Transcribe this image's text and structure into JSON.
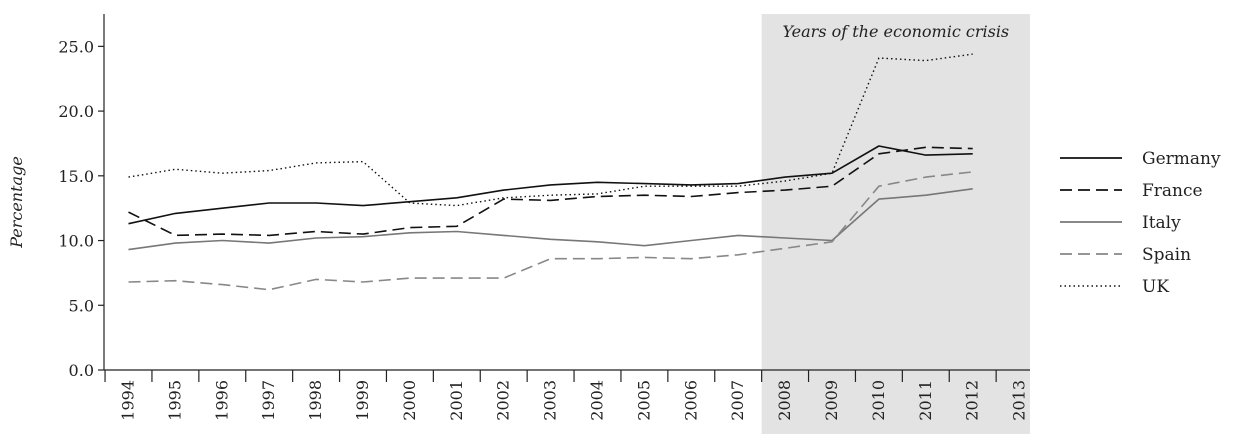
{
  "chart_data": {
    "type": "line",
    "ylabel": "Percentage",
    "xlabel": "",
    "title": "",
    "ylim": [
      0,
      27.5
    ],
    "yticks": [
      "0.0",
      "5.0",
      "10.0",
      "15.0",
      "20.0",
      "25.0"
    ],
    "categories": [
      "1994",
      "1995",
      "1996",
      "1997",
      "1998",
      "1999",
      "2000",
      "2001",
      "2002",
      "2003",
      "2004",
      "2005",
      "2006",
      "2007",
      "2008",
      "2009",
      "2010",
      "2011",
      "2012",
      "2013"
    ],
    "shaded_region": {
      "from": "2008",
      "to": "2013",
      "label": "Years of the economic crisis",
      "color": "#e3e3e3"
    },
    "legend_position": "right",
    "series": [
      {
        "name": "Germany",
        "color": "#111111",
        "style": "solid",
        "values": [
          11.3,
          12.1,
          12.5,
          12.9,
          12.9,
          12.7,
          13.0,
          13.3,
          13.9,
          14.3,
          14.5,
          14.4,
          14.3,
          14.4,
          14.9,
          15.2,
          17.3,
          16.6,
          16.7,
          null
        ]
      },
      {
        "name": "France",
        "color": "#111111",
        "style": "dashed",
        "values": [
          12.2,
          10.4,
          10.5,
          10.4,
          10.7,
          10.5,
          11.0,
          11.1,
          13.2,
          13.1,
          13.4,
          13.5,
          13.4,
          13.7,
          13.9,
          14.2,
          16.7,
          17.2,
          17.1,
          null
        ]
      },
      {
        "name": "Italy",
        "color": "#777777",
        "style": "solid",
        "values": [
          9.3,
          9.8,
          10.0,
          9.8,
          10.2,
          10.3,
          10.6,
          10.7,
          10.4,
          10.1,
          9.9,
          9.6,
          10.0,
          10.4,
          10.2,
          10.0,
          13.2,
          13.5,
          14.0,
          null
        ]
      },
      {
        "name": "Spain",
        "color": "#888888",
        "style": "dashed",
        "values": [
          6.8,
          6.9,
          6.6,
          6.2,
          7.0,
          6.8,
          7.1,
          7.1,
          7.1,
          8.6,
          8.6,
          8.7,
          8.6,
          8.9,
          9.4,
          9.9,
          14.2,
          14.9,
          15.3,
          null
        ]
      },
      {
        "name": "UK",
        "color": "#111111",
        "style": "dotted",
        "values": [
          14.9,
          15.5,
          15.2,
          15.4,
          16.0,
          16.1,
          12.9,
          12.7,
          13.3,
          13.5,
          13.6,
          14.2,
          14.2,
          14.2,
          14.6,
          15.2,
          24.1,
          23.9,
          24.4,
          null
        ]
      }
    ]
  }
}
